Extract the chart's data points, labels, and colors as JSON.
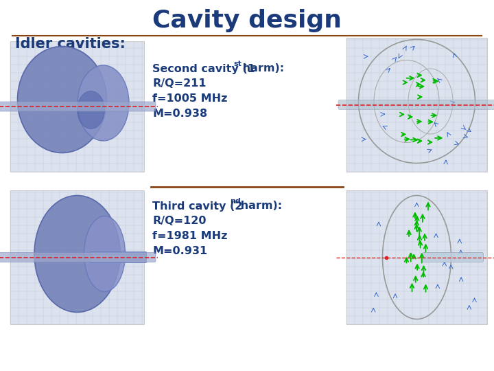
{
  "title": "Cavity design",
  "subtitle": "Idler cavities:",
  "s1_line1a": "Second cavity (1",
  "s1_sup": "st",
  "s1_line1b": " harm):",
  "s1_line2": "R/Q=211",
  "s1_line3": "f=1005 MHz",
  "s1_line4": "M=0.938",
  "s2_line1a": "Third cavity (2",
  "s2_sup": "nd",
  "s2_line1b": " harm):",
  "s2_line2": "R/Q=120",
  "s2_line3": "f=1981 MHz",
  "s2_line4": "M=0.931",
  "title_color": "#1a3a7a",
  "subtitle_color": "#1a3a7a",
  "text_color": "#1a3a7a",
  "separator_color": "#8B4513",
  "bg_color": "#ffffff",
  "border_color": "#cccccc",
  "title_fontsize": 26,
  "subtitle_fontsize": 15,
  "body_fontsize": 11.5
}
